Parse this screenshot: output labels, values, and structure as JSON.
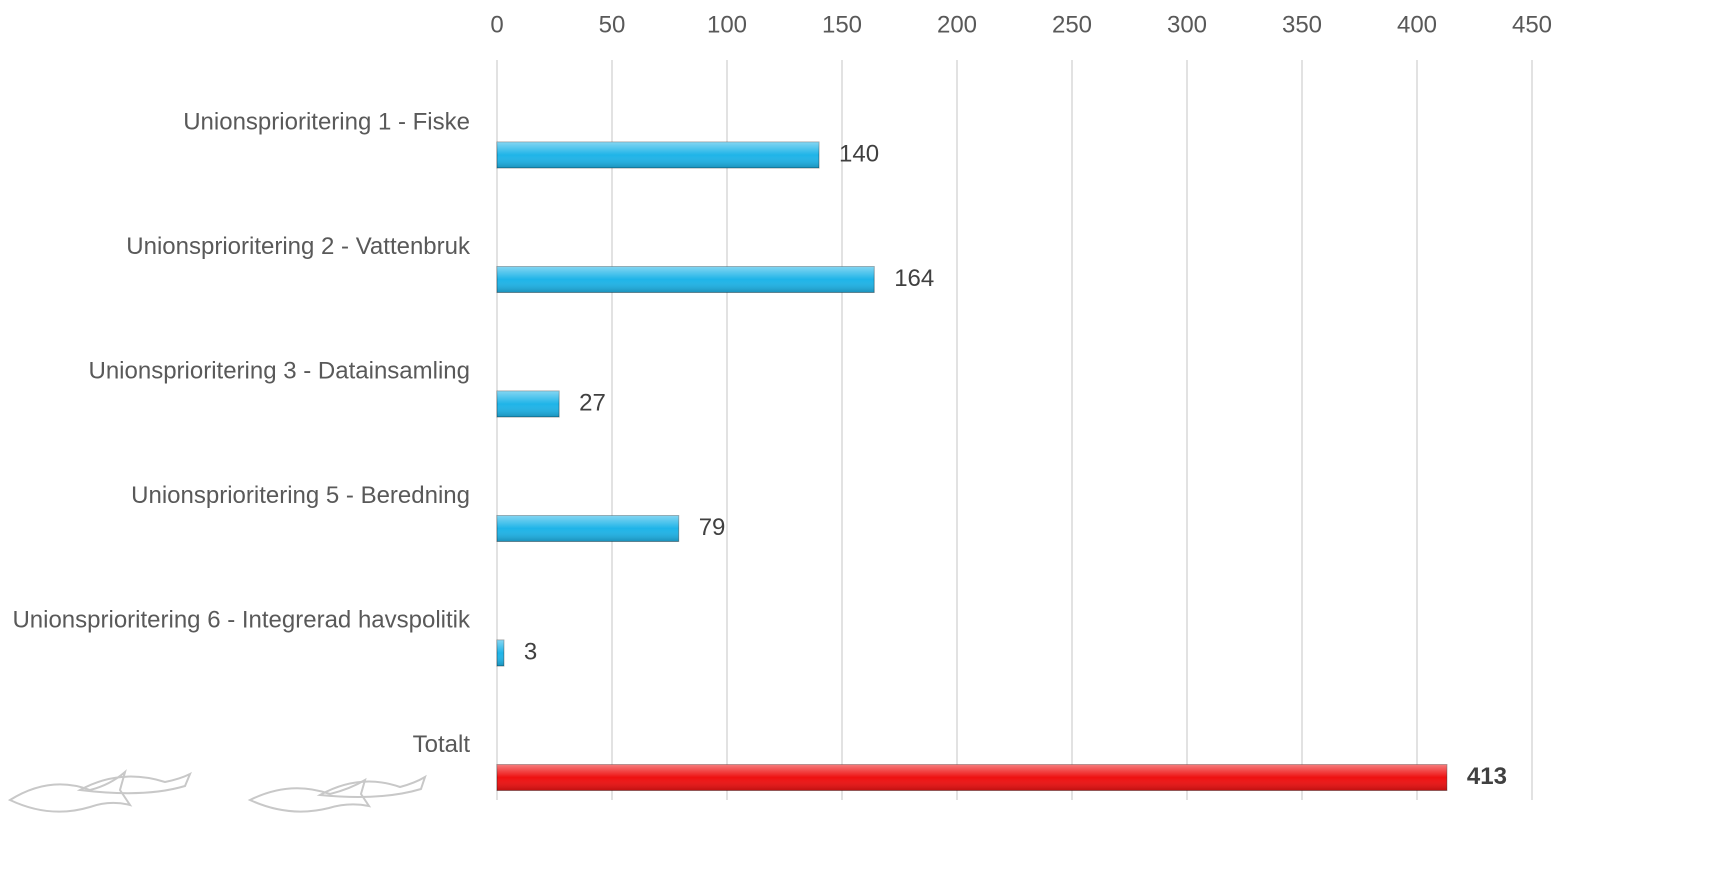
{
  "chart_data": {
    "type": "barh",
    "categories": [
      "Unionsprioritering 1 - Fiske",
      "Unionsprioritering 2 - Vattenbruk",
      "Unionsprioritering 3 - Datainsamling",
      "Unionsprioritering 5 - Beredning",
      "Unionsprioritering 6 - Integrerad havspolitik",
      "Totalt"
    ],
    "values": [
      140,
      164,
      27,
      79,
      3,
      413
    ],
    "colors": [
      "#1fb4e8",
      "#1fb4e8",
      "#1fb4e8",
      "#1fb4e8",
      "#1fb4e8",
      "#ee1111"
    ],
    "xlim": [
      0,
      450
    ],
    "xticks": [
      0,
      50,
      100,
      150,
      200,
      250,
      300,
      350,
      400,
      450
    ],
    "grid": true
  }
}
